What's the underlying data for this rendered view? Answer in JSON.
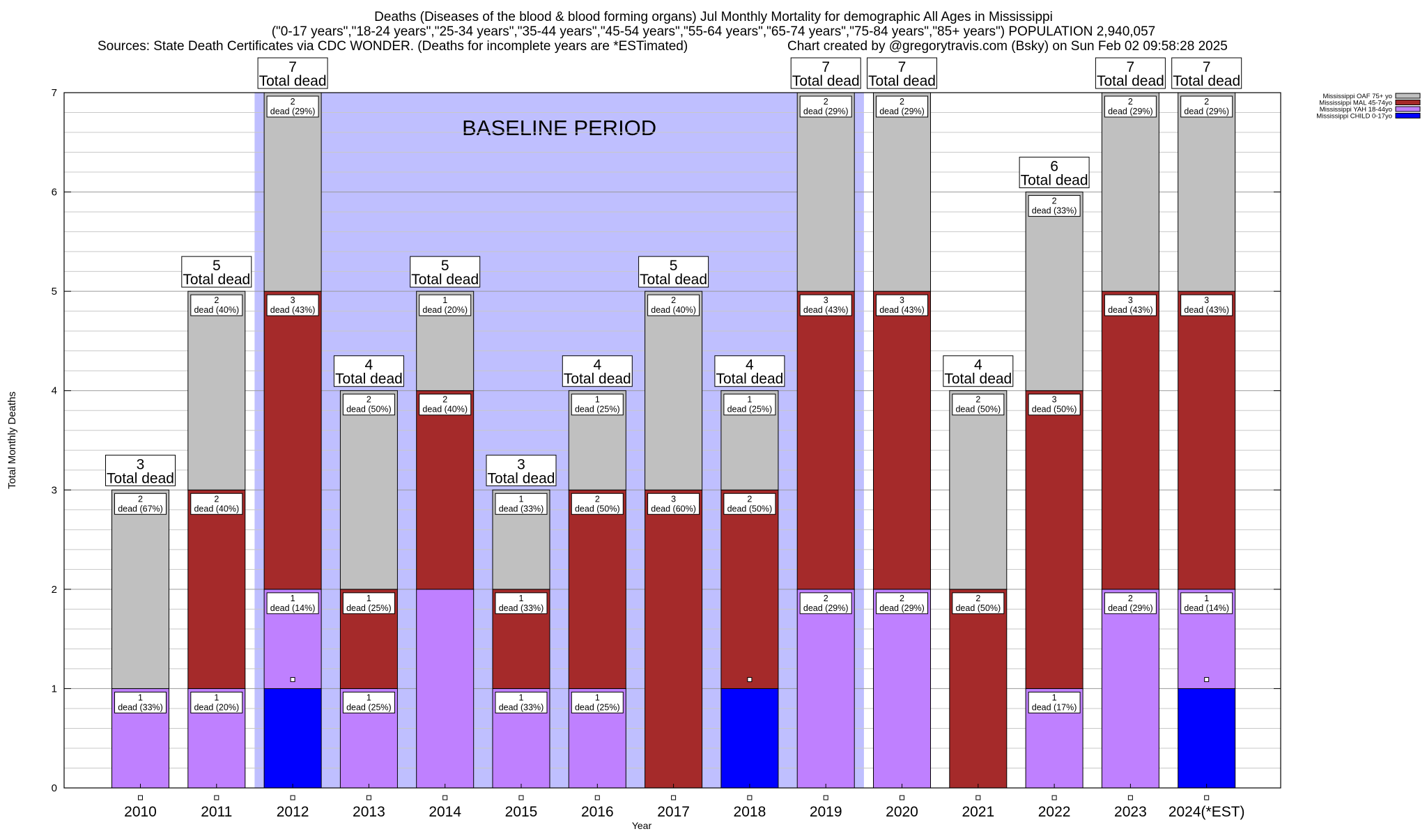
{
  "header": {
    "title_line1": "Deaths (Diseases of the blood & blood forming organs) Jul Monthly Mortality for demographic All Ages in Mississippi",
    "title_line2": "(\"0-17 years\",\"18-24 years\",\"25-34 years\",\"35-44 years\",\"45-54 years\",\"55-64 years\",\"65-74 years\",\"75-84 years\",\"85+ years\") POPULATION 2,940,057",
    "sources": "Sources: State Death Certificates via CDC WONDER. (Deaths for incomplete years are *ESTimated)",
    "credit": "Chart created by @gregorytravis.com (Bsky) on Sun Feb 02 09:58:28 2025"
  },
  "chart_data": {
    "type": "bar",
    "stacked": true,
    "xlabel": "Year",
    "ylabel": "Total Monthly Deaths",
    "ylim": [
      0,
      7
    ],
    "yticks": [
      0,
      1,
      2,
      3,
      4,
      5,
      6,
      7
    ],
    "grid": true,
    "legend_position": "top-right",
    "categories": [
      "2010",
      "2011",
      "2012",
      "2013",
      "2014",
      "2015",
      "2016",
      "2017",
      "2018",
      "2019",
      "2020",
      "2021",
      "2022",
      "2023",
      "2024(*EST)"
    ],
    "series": [
      {
        "name": "Mississippi CHILD 0-17yo",
        "color": "#0000ff",
        "values": [
          0,
          0,
          1,
          0,
          0,
          0,
          0,
          0,
          1,
          0,
          0,
          0,
          0,
          0,
          1
        ]
      },
      {
        "name": "Mississippi YAH 18-44yo",
        "color": "#bf80ff",
        "values": [
          1,
          1,
          1,
          1,
          2,
          1,
          1,
          0,
          0,
          2,
          2,
          0,
          1,
          2,
          1
        ]
      },
      {
        "name": "Mississippi MAL 45-74yo",
        "color": "#a52a2a",
        "values": [
          0,
          2,
          3,
          1,
          2,
          1,
          2,
          3,
          2,
          3,
          3,
          2,
          3,
          3,
          3
        ]
      },
      {
        "name": "Mississippi OAF 75+ yo",
        "color": "#c0c0c0",
        "values": [
          2,
          2,
          2,
          2,
          1,
          1,
          1,
          2,
          1,
          2,
          2,
          2,
          2,
          2,
          2
        ]
      }
    ],
    "totals": [
      3,
      5,
      7,
      4,
      5,
      3,
      4,
      5,
      4,
      7,
      7,
      4,
      6,
      7,
      7
    ],
    "total_label": "Total dead",
    "dead_word": "dead",
    "segment_labels": [
      [
        null,
        [
          "1",
          "dead (33%)"
        ],
        null,
        [
          "2",
          "dead (67%)"
        ]
      ],
      [
        null,
        [
          "1",
          "dead (20%)"
        ],
        [
          "2",
          "dead (40%)"
        ],
        [
          "2",
          "dead (40%)"
        ]
      ],
      [
        null,
        [
          "1",
          "dead (14%)"
        ],
        [
          "3",
          "dead (43%)"
        ],
        [
          "2",
          "dead (29%)"
        ]
      ],
      [
        null,
        [
          "1",
          "dead (25%)"
        ],
        [
          "1",
          "dead (25%)"
        ],
        [
          "2",
          "dead (50%)"
        ]
      ],
      [
        null,
        null,
        [
          "2",
          "dead (40%)"
        ],
        [
          "1",
          "dead (20%)"
        ]
      ],
      [
        null,
        [
          "1",
          "dead (33%)"
        ],
        [
          "1",
          "dead (33%)"
        ],
        [
          "1",
          "dead (33%)"
        ]
      ],
      [
        null,
        [
          "1",
          "dead (25%)"
        ],
        [
          "2",
          "dead (50%)"
        ],
        [
          "1",
          "dead (25%)"
        ]
      ],
      [
        null,
        null,
        [
          "3",
          "dead (60%)"
        ],
        [
          "2",
          "dead (40%)"
        ]
      ],
      [
        null,
        null,
        [
          "2",
          "dead (50%)"
        ],
        [
          "1",
          "dead (25%)"
        ]
      ],
      [
        null,
        [
          "2",
          "dead (29%)"
        ],
        [
          "3",
          "dead (43%)"
        ],
        [
          "2",
          "dead (29%)"
        ]
      ],
      [
        null,
        [
          "2",
          "dead (29%)"
        ],
        [
          "3",
          "dead (43%)"
        ],
        [
          "2",
          "dead (29%)"
        ]
      ],
      [
        null,
        null,
        [
          "2",
          "dead (50%)"
        ],
        [
          "2",
          "dead (50%)"
        ]
      ],
      [
        null,
        [
          "1",
          "dead (17%)"
        ],
        [
          "3",
          "dead (50%)"
        ],
        [
          "2",
          "dead (33%)"
        ]
      ],
      [
        null,
        [
          "2",
          "dead (29%)"
        ],
        [
          "3",
          "dead (43%)"
        ],
        [
          "2",
          "dead (29%)"
        ]
      ],
      [
        null,
        [
          "1",
          "dead (14%)"
        ],
        [
          "3",
          "dead (43%)"
        ],
        [
          "2",
          "dead (29%)"
        ]
      ]
    ],
    "annotations": [
      {
        "text": "BASELINE PERIOD",
        "from": "2012",
        "to": "2019",
        "color": "#bfbfff"
      }
    ]
  }
}
